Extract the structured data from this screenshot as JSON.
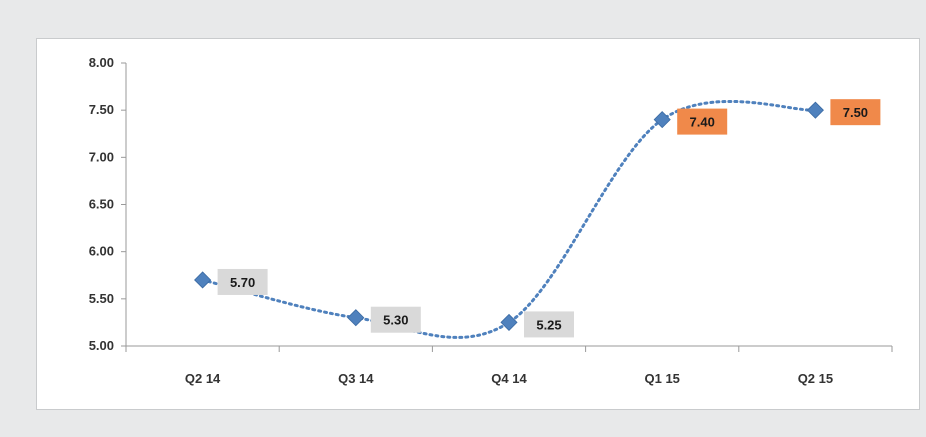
{
  "chart_data": {
    "type": "line",
    "title": "",
    "xlabel": "",
    "ylabel": "",
    "categories": [
      "Q2 14",
      "Q3 14",
      "Q4 14",
      "Q1 15",
      "Q2 15"
    ],
    "series": [
      {
        "values": [
          5.7,
          5.3,
          5.25,
          7.4,
          7.5
        ],
        "labels": [
          "5.70",
          "5.30",
          "5.25",
          "7.40",
          "7.50"
        ],
        "label_colors": [
          "#d9d9d9",
          "#d9d9d9",
          "#d9d9d9",
          "#f0894a",
          "#f0894a"
        ]
      }
    ],
    "ylim": [
      5.0,
      8.0
    ],
    "yticks": [
      "5.00",
      "5.50",
      "6.00",
      "6.50",
      "7.00",
      "7.50",
      "8.00"
    ],
    "grid": false,
    "legend": "none",
    "line_style": "dotted smoothed",
    "line_color": "#4f81bd",
    "marker": "diamond"
  }
}
